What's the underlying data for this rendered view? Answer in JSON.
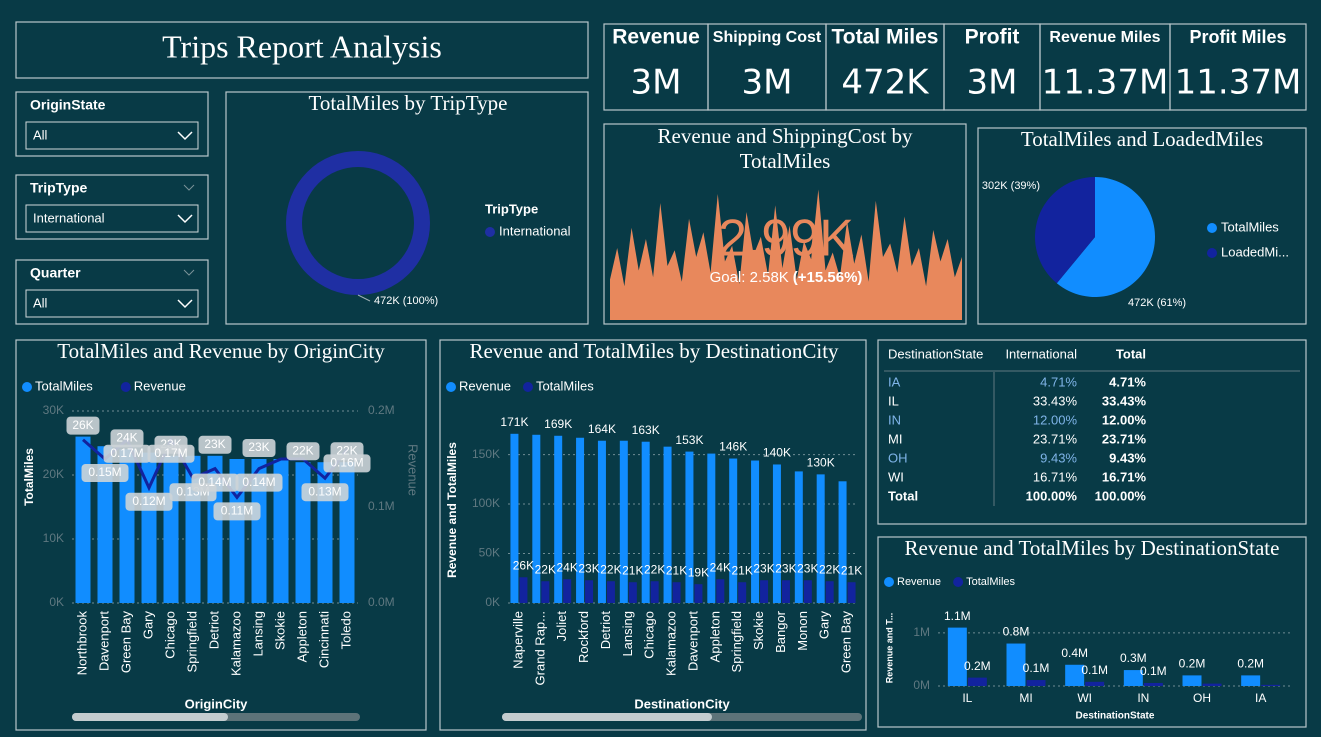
{
  "header": {
    "title": "Trips Report Analysis"
  },
  "slicers": [
    {
      "label": "OriginState",
      "value": "All"
    },
    {
      "label": "TripType",
      "value": "International"
    },
    {
      "label": "Quarter",
      "value": "All"
    }
  ],
  "cards": [
    {
      "label": "Revenue",
      "value": "3M"
    },
    {
      "label": "Shipping Cost",
      "value": "3M"
    },
    {
      "label": "Total Miles",
      "value": "472K"
    },
    {
      "label": "Profit",
      "value": "3M"
    },
    {
      "label": "Revenue Miles",
      "value": "11.37M"
    },
    {
      "label": "Profit Miles",
      "value": "11.37M"
    }
  ],
  "table": {
    "columns": [
      "DestinationState",
      "International",
      "Total"
    ],
    "rows": [
      [
        "IA",
        "4.71%",
        "4.71%"
      ],
      [
        "IL",
        "33.43%",
        "33.43%"
      ],
      [
        "IN",
        "12.00%",
        "12.00%"
      ],
      [
        "MI",
        "23.71%",
        "23.71%"
      ],
      [
        "OH",
        "9.43%",
        "9.43%"
      ],
      [
        "WI",
        "16.71%",
        "16.71%"
      ],
      [
        "Total",
        "100.00%",
        "100.00%"
      ]
    ]
  },
  "chart_data": [
    {
      "type": "donut",
      "title": "TotalMiles by TripType",
      "legend_title": "TripType",
      "categories": [
        "International"
      ],
      "values": [
        472000
      ],
      "value_labels": [
        "472K (100%)"
      ],
      "colors": [
        "#1f2fa3"
      ]
    },
    {
      "type": "kpi",
      "title": "Revenue and ShippingCost by TotalMiles",
      "kpi_value": {
        "value": 2990,
        "label": "2.99K"
      },
      "goal": {
        "value": 2580,
        "label": "Goal: 2.58K"
      },
      "delta": {
        "value": 15.56,
        "label": "(+15.56%)"
      },
      "color": "#e8885c",
      "trend": [
        1800,
        3200,
        1500,
        4100,
        2200,
        3600,
        1900,
        5200,
        2400,
        3100,
        1700,
        4500,
        2800,
        3900,
        2100,
        5600,
        2600,
        3300,
        1600,
        4800,
        2900,
        3700,
        2000,
        5100,
        2300,
        4200,
        1800,
        3500,
        2700,
        5800,
        2200,
        3000,
        1900,
        4400,
        2500,
        3800,
        1700,
        5300,
        2800,
        3400,
        2100,
        4600,
        2400,
        3200,
        1500,
        4000,
        2600,
        3600,
        1900,
        2800
      ],
      "trend_ylim": [
        0,
        6000
      ]
    },
    {
      "type": "pie",
      "title": "TotalMiles and LoadedMiles",
      "categories": [
        "TotalMiles",
        "LoadedMi..."
      ],
      "values": [
        472000,
        302000
      ],
      "value_labels": [
        "472K (61%)",
        "302K (39%)"
      ],
      "colors": [
        "#118dff",
        "#12239e"
      ]
    },
    {
      "type": "bar_line",
      "title": "TotalMiles and Revenue by OriginCity",
      "x_label": "OriginCity",
      "y_label": "TotalMiles",
      "y2_label": "Revenue",
      "categories": [
        "Northbrook",
        "Davenport",
        "Green Bay",
        "Gary",
        "Chicago",
        "Springfield",
        "Detriot",
        "Kalamazoo",
        "Lansing",
        "Skokie",
        "Appleton",
        "Cincinnati",
        "Toledo"
      ],
      "series": [
        {
          "name": "TotalMiles",
          "color": "#118dff",
          "values": [
            26000,
            24500,
            24000,
            23500,
            23000,
            23000,
            23000,
            22500,
            22500,
            22500,
            22000,
            22000,
            22000
          ],
          "value_labels": [
            "26K",
            null,
            "24K",
            null,
            "23K",
            null,
            "23K",
            null,
            "23K",
            null,
            "22K",
            null,
            "22K"
          ]
        },
        {
          "name": "Revenue",
          "color": "#12239e",
          "axis": "y2",
          "kind": "line",
          "values": [
            170000,
            150000,
            170000,
            120000,
            170000,
            130000,
            140000,
            110000,
            140000,
            150000,
            150000,
            130000,
            160000
          ],
          "value_labels": [
            null,
            "0.15M",
            "0.17M",
            "0.12M",
            "0.17M",
            "0.13M",
            "0.14M",
            "0.11M",
            "0.14M",
            null,
            null,
            "0.13M",
            "0.16M"
          ]
        }
      ],
      "ylim": [
        0,
        30000
      ],
      "yticks": [
        {
          "value": 0,
          "label": "0K"
        },
        {
          "value": 10000,
          "label": "10K"
        },
        {
          "value": 20000,
          "label": "20K"
        },
        {
          "value": 30000,
          "label": "30K"
        }
      ],
      "y2lim": [
        0,
        200000
      ],
      "y2ticks": [
        {
          "value": 0,
          "label": "0.0M"
        },
        {
          "value": 100000,
          "label": "0.1M"
        },
        {
          "value": 200000,
          "label": "0.2M"
        }
      ],
      "grid": true
    },
    {
      "type": "bar",
      "title": "Revenue and TotalMiles by DestinationCity",
      "x_label": "DestinationCity",
      "y_label": "Revenue and TotalMiles",
      "categories": [
        "Naperville",
        "Grand Rap...",
        "Joliet",
        "Rockford",
        "Detriot",
        "Lansing",
        "Chicago",
        "Kalamazoo",
        "Davenport",
        "Appleton",
        "Springfield",
        "Skokie",
        "Bangor",
        "Monon",
        "Gary",
        "Green Bay"
      ],
      "series": [
        {
          "name": "Revenue",
          "color": "#118dff",
          "values": [
            171000,
            170000,
            169000,
            167000,
            164000,
            164000,
            163000,
            158000,
            153000,
            151000,
            146000,
            144000,
            140000,
            133000,
            130000,
            123000
          ],
          "value_labels": [
            "171K",
            null,
            "169K",
            null,
            "164K",
            null,
            "163K",
            null,
            "153K",
            null,
            "146K",
            null,
            "140K",
            null,
            "130K",
            null
          ]
        },
        {
          "name": "TotalMiles",
          "color": "#12239e",
          "values": [
            26000,
            22000,
            24000,
            23000,
            22000,
            21000,
            22000,
            21000,
            19000,
            24000,
            21000,
            23000,
            23000,
            23000,
            22000,
            21000
          ],
          "value_labels": [
            "26K",
            "22K",
            "24K",
            "23K",
            "22K",
            "21K",
            "22K",
            "21K",
            "19K",
            "24K",
            "21K",
            "23K",
            "23K",
            "23K",
            "22K",
            "21K"
          ]
        }
      ],
      "ylim": [
        0,
        190000
      ],
      "yticks": [
        {
          "value": 0,
          "label": "0K"
        },
        {
          "value": 50000,
          "label": "50K"
        },
        {
          "value": 100000,
          "label": "100K"
        },
        {
          "value": 150000,
          "label": "150K"
        }
      ],
      "grid": true
    },
    {
      "type": "bar",
      "title": "Revenue and TotalMiles by DestinationState",
      "x_label": "DestinationState",
      "y_label": "Revenue and T...",
      "categories": [
        "IL",
        "MI",
        "WI",
        "IN",
        "OH",
        "IA"
      ],
      "series": [
        {
          "name": "Revenue",
          "color": "#118dff",
          "values": [
            1100000,
            800000,
            400000,
            300000,
            200000,
            200000
          ],
          "value_labels": [
            "1.1M",
            "0.8M",
            "0.4M",
            "0.3M",
            "0.2M",
            "0.2M"
          ]
        },
        {
          "name": "TotalMiles",
          "color": "#12239e",
          "values": [
            158000,
            112000,
            79000,
            57000,
            45000,
            22000
          ],
          "value_labels": [
            "0.2M",
            "0.1M",
            "0.1M",
            "0.1M",
            null,
            null
          ]
        }
      ],
      "ylim": [
        0,
        1300000
      ],
      "yticks": [
        {
          "value": 0,
          "label": "0M"
        },
        {
          "value": 1000000,
          "label": "1M"
        }
      ],
      "grid": true
    }
  ]
}
